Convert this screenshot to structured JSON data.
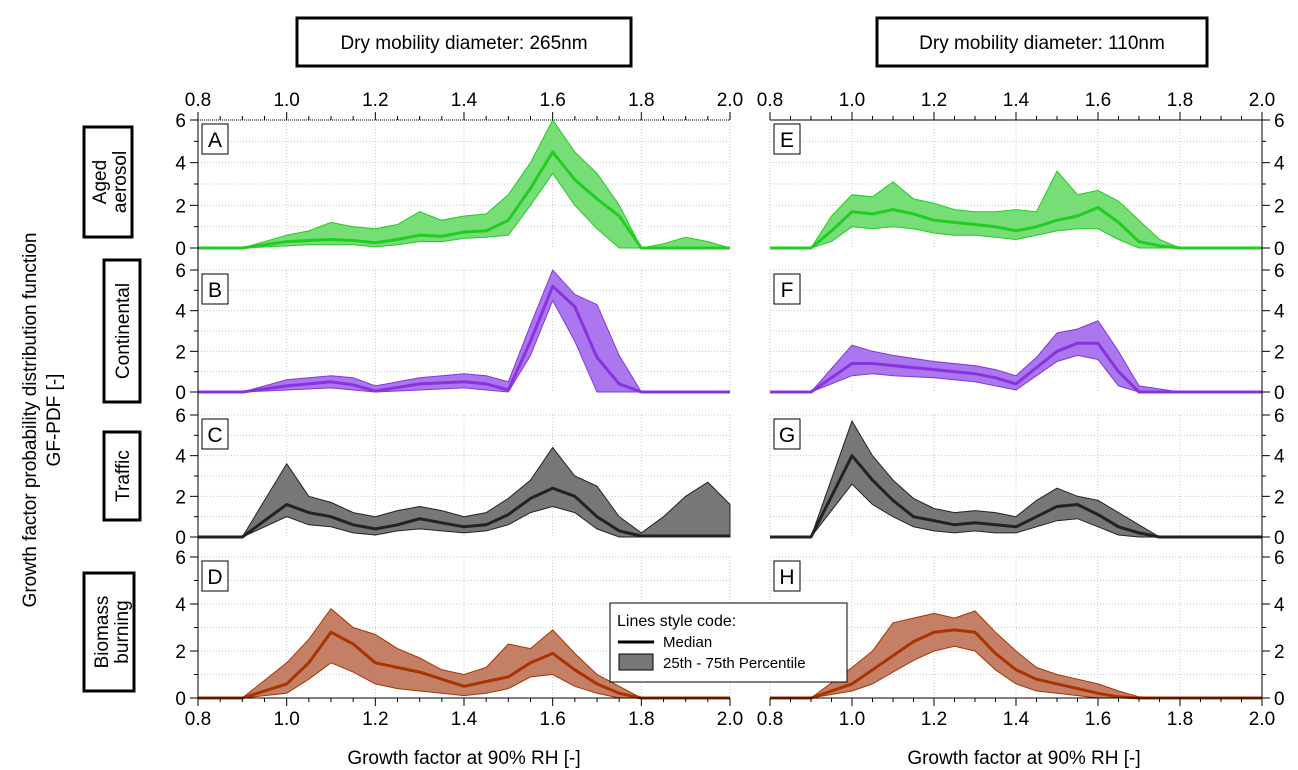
{
  "figure": {
    "ylabel_line1": "Growth factor probability distribution function",
    "ylabel_line2": "GF-PDF [-]",
    "xlabel": "Growth factor at 90% RH [-]",
    "columns": [
      {
        "title": "Dry mobility diameter: 265nm"
      },
      {
        "title": "Dry mobility diameter: 110nm"
      }
    ],
    "rows": [
      {
        "label_lines": [
          "Aged",
          "aerosol"
        ],
        "color": "#22cc22",
        "fill": "#77dd77"
      },
      {
        "label_lines": [
          "Continental"
        ],
        "color": "#8833dd",
        "fill": "#aa77ee"
      },
      {
        "label_lines": [
          "Traffic"
        ],
        "color": "#222222",
        "fill": "#777777"
      },
      {
        "label_lines": [
          "Biomass",
          "burning"
        ],
        "color": "#aa3300",
        "fill": "#c48066"
      }
    ],
    "legend": {
      "title": "Lines style code:",
      "median": "Median",
      "band": "25th - 75th Percentile"
    }
  },
  "chart_data": [
    {
      "type": "area",
      "panel": "A",
      "column": "Dry mobility diameter: 265nm",
      "row": "Aged aerosol",
      "xlim": [
        0.8,
        2.0
      ],
      "ylim": [
        0,
        6
      ],
      "xticks": [
        0.8,
        1.0,
        1.2,
        1.4,
        1.6,
        1.8,
        2.0
      ],
      "yticks": [
        0,
        2,
        4,
        6
      ],
      "x": [
        0.8,
        0.9,
        1.0,
        1.05,
        1.1,
        1.15,
        1.2,
        1.25,
        1.3,
        1.35,
        1.4,
        1.45,
        1.5,
        1.55,
        1.6,
        1.65,
        1.7,
        1.75,
        1.8,
        1.85,
        1.9,
        1.95,
        2.0
      ],
      "median": [
        0,
        0,
        0.3,
        0.35,
        0.4,
        0.35,
        0.25,
        0.4,
        0.6,
        0.55,
        0.75,
        0.8,
        1.3,
        2.8,
        4.5,
        3.2,
        2.3,
        1.5,
        0,
        0,
        0,
        0,
        0
      ],
      "p25": [
        0,
        0,
        0.1,
        0.15,
        0.15,
        0.15,
        0.05,
        0.15,
        0.3,
        0.3,
        0.45,
        0.5,
        0.6,
        2.0,
        3.5,
        2.0,
        0.9,
        0,
        0,
        0,
        0,
        0,
        0
      ],
      "p75": [
        0,
        0,
        0.6,
        0.8,
        1.2,
        1.0,
        0.9,
        1.1,
        1.7,
        1.3,
        1.5,
        1.6,
        2.5,
        4.0,
        6.0,
        4.5,
        3.5,
        2.0,
        0,
        0.2,
        0.5,
        0.3,
        0
      ]
    },
    {
      "type": "area",
      "panel": "B",
      "column": "Dry mobility diameter: 265nm",
      "row": "Continental",
      "xlim": [
        0.8,
        2.0
      ],
      "ylim": [
        0,
        6
      ],
      "xticks": [
        0.8,
        1.0,
        1.2,
        1.4,
        1.6,
        1.8,
        2.0
      ],
      "yticks": [
        0,
        2,
        4,
        6
      ],
      "x": [
        0.8,
        0.9,
        1.0,
        1.1,
        1.15,
        1.2,
        1.3,
        1.4,
        1.45,
        1.5,
        1.55,
        1.6,
        1.65,
        1.7,
        1.75,
        1.8,
        1.9,
        2.0
      ],
      "median": [
        0,
        0,
        0.3,
        0.5,
        0.35,
        0.05,
        0.4,
        0.5,
        0.4,
        0.1,
        2.5,
        5.2,
        4.2,
        1.7,
        0.4,
        0,
        0,
        0
      ],
      "p25": [
        0,
        0,
        0.1,
        0.2,
        0.1,
        0,
        0.1,
        0.2,
        0.1,
        0,
        1.8,
        4.5,
        2.5,
        0,
        0,
        0,
        0,
        0
      ],
      "p75": [
        0,
        0,
        0.6,
        0.8,
        0.7,
        0.3,
        0.7,
        0.9,
        0.8,
        0.5,
        3.3,
        6.0,
        4.8,
        4.3,
        1.8,
        0,
        0,
        0
      ]
    },
    {
      "type": "area",
      "panel": "C",
      "column": "Dry mobility diameter: 265nm",
      "row": "Traffic",
      "xlim": [
        0.8,
        2.0
      ],
      "ylim": [
        0,
        6
      ],
      "xticks": [
        0.8,
        1.0,
        1.2,
        1.4,
        1.6,
        1.8,
        2.0
      ],
      "yticks": [
        0,
        2,
        4,
        6
      ],
      "x": [
        0.8,
        0.9,
        1.0,
        1.05,
        1.1,
        1.15,
        1.2,
        1.25,
        1.3,
        1.35,
        1.4,
        1.45,
        1.5,
        1.55,
        1.6,
        1.65,
        1.7,
        1.75,
        1.8,
        1.85,
        1.9,
        1.95,
        2.0
      ],
      "median": [
        0,
        0,
        1.6,
        1.2,
        1.0,
        0.6,
        0.4,
        0.6,
        0.9,
        0.7,
        0.5,
        0.6,
        1.1,
        1.9,
        2.4,
        2.0,
        1.0,
        0.3,
        0.05,
        0.05,
        0.05,
        0.05,
        0.05
      ],
      "p25": [
        0,
        0,
        1.0,
        0.6,
        0.5,
        0.2,
        0.1,
        0.3,
        0.4,
        0.3,
        0.2,
        0.3,
        0.6,
        1.2,
        1.5,
        1.2,
        0.4,
        0,
        0,
        0,
        0,
        0,
        0
      ],
      "p75": [
        0,
        0,
        3.6,
        2.0,
        1.7,
        1.2,
        1.0,
        1.3,
        1.5,
        1.3,
        1.0,
        1.2,
        1.9,
        2.8,
        4.4,
        3.0,
        2.5,
        1.0,
        0.2,
        1.0,
        2.0,
        2.7,
        1.6
      ]
    },
    {
      "type": "area",
      "panel": "D",
      "column": "Dry mobility diameter: 265nm",
      "row": "Biomass burning",
      "xlim": [
        0.8,
        2.0
      ],
      "ylim": [
        0,
        6
      ],
      "xticks": [
        0.8,
        1.0,
        1.2,
        1.4,
        1.6,
        1.8,
        2.0
      ],
      "yticks": [
        0,
        2,
        4,
        6
      ],
      "x": [
        0.8,
        0.9,
        1.0,
        1.05,
        1.1,
        1.15,
        1.2,
        1.25,
        1.3,
        1.35,
        1.4,
        1.45,
        1.5,
        1.55,
        1.6,
        1.65,
        1.7,
        1.75,
        1.8,
        1.85,
        1.9,
        2.0
      ],
      "median": [
        0,
        0,
        0.6,
        1.5,
        2.8,
        2.3,
        1.5,
        1.3,
        1.1,
        0.8,
        0.5,
        0.7,
        0.9,
        1.5,
        1.9,
        1.2,
        0.6,
        0.2,
        0,
        0,
        0,
        0
      ],
      "p25": [
        0,
        0,
        0.2,
        0.8,
        1.5,
        1.1,
        0.6,
        0.4,
        0.3,
        0.2,
        0.1,
        0.2,
        0.4,
        0.9,
        1.0,
        0.5,
        0.2,
        0,
        0,
        0,
        0,
        0
      ],
      "p75": [
        0,
        0,
        1.5,
        2.5,
        3.8,
        3.0,
        2.7,
        2.1,
        1.7,
        1.2,
        1.0,
        1.3,
        2.3,
        2.1,
        2.9,
        1.9,
        1.0,
        0.5,
        0,
        0,
        0,
        0
      ]
    },
    {
      "type": "area",
      "panel": "E",
      "column": "Dry mobility diameter: 110nm",
      "row": "Aged aerosol",
      "xlim": [
        0.8,
        2.0
      ],
      "ylim": [
        0,
        6
      ],
      "xticks": [
        0.8,
        1.0,
        1.2,
        1.4,
        1.6,
        1.8,
        2.0
      ],
      "yticks": [
        0,
        2,
        4,
        6
      ],
      "x": [
        0.8,
        0.9,
        0.95,
        1.0,
        1.05,
        1.1,
        1.15,
        1.2,
        1.25,
        1.3,
        1.35,
        1.4,
        1.45,
        1.5,
        1.55,
        1.6,
        1.65,
        1.7,
        1.75,
        1.8,
        1.9,
        2.0
      ],
      "median": [
        0,
        0,
        0.8,
        1.7,
        1.6,
        1.8,
        1.6,
        1.3,
        1.2,
        1.1,
        1.0,
        0.8,
        1.0,
        1.3,
        1.5,
        1.9,
        1.2,
        0.3,
        0.1,
        0,
        0,
        0
      ],
      "p25": [
        0,
        0,
        0.3,
        1.0,
        0.9,
        1.0,
        0.9,
        0.7,
        0.6,
        0.6,
        0.5,
        0.4,
        0.6,
        0.8,
        0.9,
        0.9,
        0.4,
        0,
        0,
        0,
        0,
        0
      ],
      "p75": [
        0,
        0,
        1.5,
        2.5,
        2.4,
        3.1,
        2.3,
        2.1,
        1.8,
        1.7,
        1.7,
        1.8,
        1.7,
        3.6,
        2.5,
        2.7,
        2.2,
        1.3,
        0.4,
        0,
        0,
        0
      ]
    },
    {
      "type": "area",
      "panel": "F",
      "column": "Dry mobility diameter: 110nm",
      "row": "Continental",
      "xlim": [
        0.8,
        2.0
      ],
      "ylim": [
        0,
        6
      ],
      "xticks": [
        0.8,
        1.0,
        1.2,
        1.4,
        1.6,
        1.8,
        2.0
      ],
      "yticks": [
        0,
        2,
        4,
        6
      ],
      "x": [
        0.8,
        0.9,
        1.0,
        1.05,
        1.1,
        1.2,
        1.3,
        1.35,
        1.4,
        1.45,
        1.5,
        1.55,
        1.6,
        1.65,
        1.7,
        1.8,
        1.9,
        2.0
      ],
      "median": [
        0,
        0,
        1.4,
        1.4,
        1.3,
        1.1,
        0.9,
        0.7,
        0.4,
        1.2,
        2.0,
        2.4,
        2.4,
        1.0,
        0,
        0,
        0,
        0
      ],
      "p25": [
        0,
        0,
        0.8,
        0.9,
        0.8,
        0.7,
        0.5,
        0.3,
        0.1,
        0.8,
        1.5,
        1.8,
        1.6,
        0.3,
        0,
        0,
        0,
        0
      ],
      "p75": [
        0,
        0,
        2.3,
        2.0,
        1.8,
        1.5,
        1.3,
        1.1,
        0.8,
        1.7,
        2.9,
        3.1,
        3.5,
        2.0,
        0.3,
        0,
        0,
        0
      ]
    },
    {
      "type": "area",
      "panel": "G",
      "column": "Dry mobility diameter: 110nm",
      "row": "Traffic",
      "xlim": [
        0.8,
        2.0
      ],
      "ylim": [
        0,
        6
      ],
      "xticks": [
        0.8,
        1.0,
        1.2,
        1.4,
        1.6,
        1.8,
        2.0
      ],
      "yticks": [
        0,
        2,
        4,
        6
      ],
      "x": [
        0.8,
        0.9,
        1.0,
        1.05,
        1.1,
        1.15,
        1.2,
        1.25,
        1.3,
        1.35,
        1.4,
        1.45,
        1.5,
        1.55,
        1.6,
        1.65,
        1.7,
        1.75,
        1.8,
        1.9,
        2.0
      ],
      "median": [
        0,
        0,
        4.0,
        2.8,
        1.8,
        1.0,
        0.8,
        0.6,
        0.7,
        0.6,
        0.5,
        1.0,
        1.5,
        1.6,
        1.1,
        0.5,
        0.2,
        0,
        0,
        0,
        0
      ],
      "p25": [
        0,
        0,
        2.6,
        1.6,
        1.0,
        0.5,
        0.3,
        0.2,
        0.3,
        0.2,
        0.2,
        0.5,
        0.8,
        0.9,
        0.5,
        0.1,
        0,
        0,
        0,
        0,
        0
      ],
      "p75": [
        0,
        0,
        5.7,
        4.0,
        2.8,
        1.9,
        1.4,
        1.2,
        1.3,
        1.2,
        1.0,
        1.8,
        2.4,
        2.0,
        1.8,
        1.2,
        0.6,
        0,
        0,
        0,
        0
      ]
    },
    {
      "type": "area",
      "panel": "H",
      "column": "Dry mobility diameter: 110nm",
      "row": "Biomass burning",
      "xlim": [
        0.8,
        2.0
      ],
      "ylim": [
        0,
        6
      ],
      "xticks": [
        0.8,
        1.0,
        1.2,
        1.4,
        1.6,
        1.8,
        2.0
      ],
      "yticks": [
        0,
        2,
        4,
        6
      ],
      "x": [
        0.8,
        0.9,
        1.0,
        1.05,
        1.1,
        1.15,
        1.2,
        1.25,
        1.3,
        1.35,
        1.4,
        1.45,
        1.5,
        1.55,
        1.6,
        1.65,
        1.7,
        1.8,
        1.9,
        2.0
      ],
      "median": [
        0,
        0,
        0.6,
        1.2,
        1.8,
        2.4,
        2.8,
        2.9,
        2.8,
        1.9,
        1.2,
        0.8,
        0.6,
        0.4,
        0.2,
        0.05,
        0,
        0,
        0,
        0
      ],
      "p25": [
        0,
        0,
        0.3,
        0.6,
        1.1,
        1.6,
        2.0,
        2.2,
        2.0,
        1.2,
        0.6,
        0.3,
        0.2,
        0.1,
        0,
        0,
        0,
        0,
        0,
        0
      ],
      "p75": [
        0,
        0,
        1.3,
        2.0,
        3.2,
        3.4,
        3.6,
        3.4,
        3.7,
        2.8,
        2.0,
        1.3,
        1.0,
        0.8,
        0.6,
        0.3,
        0.05,
        0,
        0,
        0
      ]
    }
  ]
}
